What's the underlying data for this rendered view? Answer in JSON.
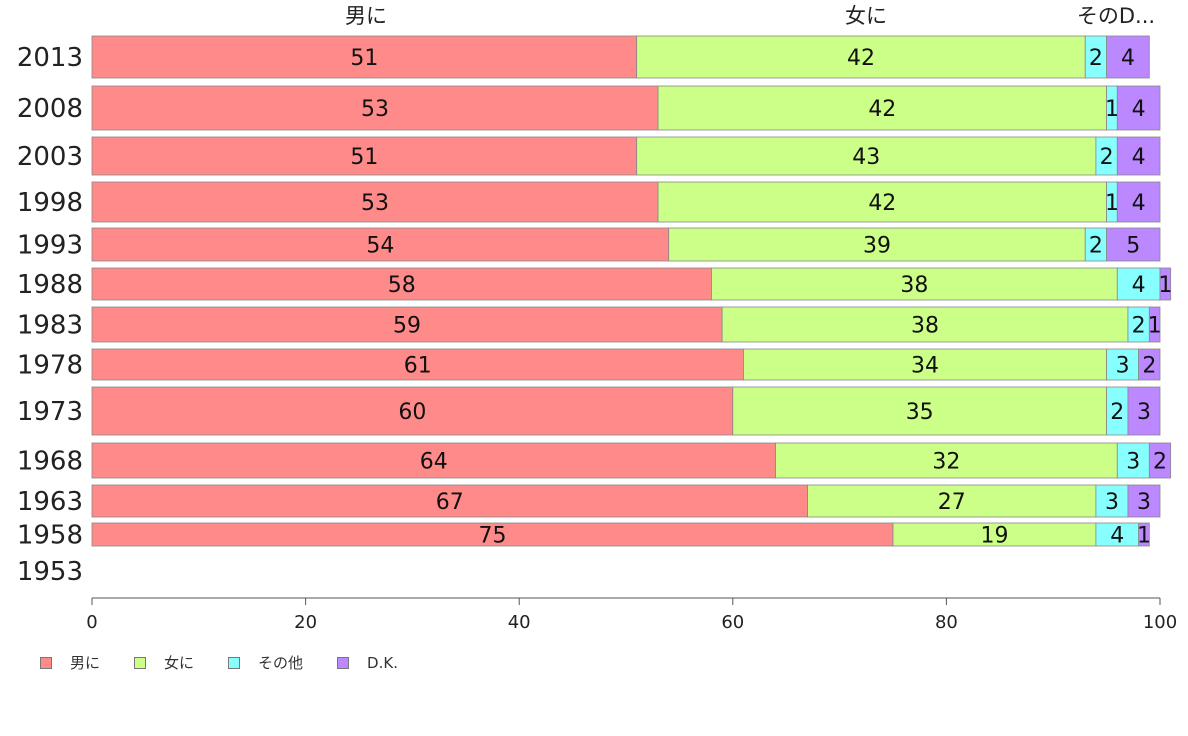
{
  "chart_data": {
    "type": "bar",
    "orientation": "horizontal",
    "stacked": true,
    "categories": [
      "2013",
      "2008",
      "2003",
      "1998",
      "1993",
      "1988",
      "1983",
      "1978",
      "1973",
      "1968",
      "1963",
      "1958",
      "1953"
    ],
    "series": [
      {
        "name": "男に",
        "color": "#ff8a8a",
        "values": [
          51,
          53,
          51,
          53,
          54,
          58,
          59,
          61,
          60,
          64,
          67,
          75,
          null
        ]
      },
      {
        "name": "女に",
        "color": "#ccff88",
        "values": [
          42,
          42,
          43,
          42,
          39,
          38,
          38,
          34,
          35,
          32,
          27,
          19,
          null
        ]
      },
      {
        "name": "その他",
        "color": "#88ffff",
        "values": [
          2,
          1,
          2,
          1,
          2,
          4,
          2,
          3,
          2,
          3,
          3,
          4,
          null
        ]
      },
      {
        "name": "D.K.",
        "color": "#bb88ff",
        "values": [
          4,
          4,
          4,
          4,
          5,
          1,
          1,
          2,
          3,
          2,
          3,
          1,
          null
        ]
      }
    ],
    "top_labels": [
      "男に",
      "女に",
      "そのD..."
    ],
    "x_ticks": [
      "0",
      "20",
      "40",
      "60",
      "80",
      "100"
    ],
    "xlim": [
      0,
      100
    ],
    "legend": "bottom-left"
  }
}
